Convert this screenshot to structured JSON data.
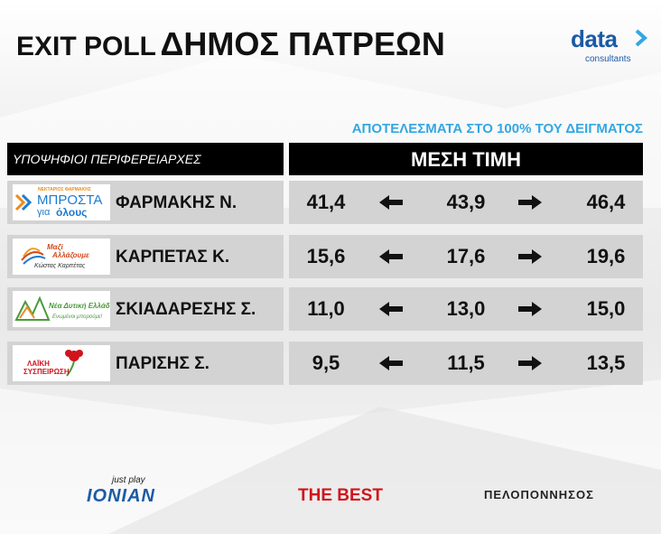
{
  "header": {
    "title_prefix": "EXIT POLL",
    "title_main": "ΔΗΜΟΣ ΠΑΤΡΕΩΝ",
    "brand": {
      "name": "data",
      "tagline": "consultants",
      "color": "#1c5aa6"
    }
  },
  "subtitle": "ΑΠΟΤΕΛΕΣΜΑΤΑ ΣΤΟ 100% ΤΟΥ ΔΕΙΓΜΑΤΟΣ",
  "subtitle_color": "#33a7e3",
  "table": {
    "left_header": "ΥΠΟΨΗΦΙΟΙ ΠΕΡΙΦΕΡΕΙΑΡΧΕΣ",
    "right_header": "ΜΕΣΗ ΤΙΜΗ",
    "rows": [
      {
        "name": "ΦΑΡΜΑΚΗΣ Ν.",
        "low": "41,4",
        "mid": "43,9",
        "high": "46,4",
        "logo": {
          "icon": "chevron-arrows-icon",
          "line1": "ΝΕΚΤΑΡΙΟΣ ΦΑΡΜΑΚΗΣ",
          "line2": "ΜΠΡΟΣΤΑ",
          "line3a": "για",
          "line3b": "όλους",
          "color": "#1c7bd0",
          "accent": "#f08a1c"
        }
      },
      {
        "name": "ΚΑΡΠΕΤΑΣ Κ.",
        "low": "15,6",
        "mid": "17,6",
        "high": "19,6",
        "logo": {
          "icon": "swoosh-icon",
          "line1": "Μαζί",
          "line2": "Αλλάζουμε",
          "line3": "Κώστας Καρπέτας",
          "color": "#d24b1e"
        }
      },
      {
        "name": "ΣΚΙΑΔΑΡΕΣΗΣ Σ.",
        "low": "11,0",
        "mid": "13,0",
        "high": "15,0",
        "logo": {
          "icon": "mountains-icon",
          "line1": "Νέα Δυτική Ελλάδα",
          "line2": "Ενωμένοι μπορούμε!",
          "color": "#4a9a3a"
        }
      },
      {
        "name": "ΠΑΡΙΣΗΣ Σ.",
        "low": "9,5",
        "mid": "11,5",
        "high": "13,5",
        "logo": {
          "icon": "carnation-icon",
          "line1": "ΛΑΪΚΗ",
          "line2": "ΣΥΣΠΕΙΡΩΣΗ",
          "color": "#d0141c"
        }
      }
    ]
  },
  "footer": {
    "ionian_small": "just play",
    "ionian_big": "IONIAN",
    "thebest": "THE BEST",
    "peloponnisos": "ΠΕΛΟΠΟΝΝΗΣΟΣ"
  }
}
